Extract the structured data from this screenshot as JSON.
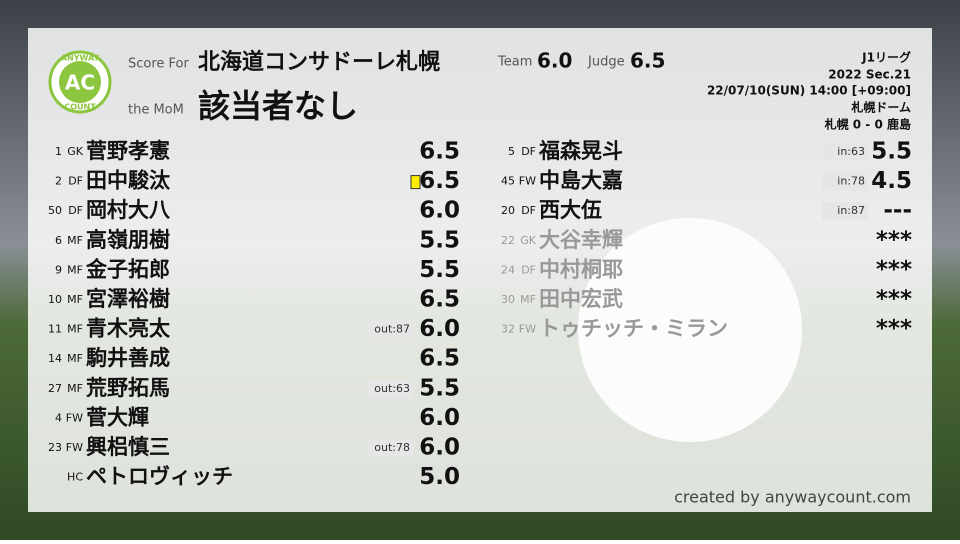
{
  "logo": {
    "top": "ANYWAY",
    "mark": "AC",
    "bottom": "COUNT"
  },
  "header": {
    "score_for_label": "Score For",
    "team": "北海道コンサドーレ札幌",
    "team_label": "Team",
    "team_score": "6.0",
    "judge_label": "Judge",
    "judge_score": "6.5",
    "mom_label": "the MoM",
    "mom": "該当者なし"
  },
  "match": {
    "league": "J1リーグ",
    "season": "2022 Sec.21",
    "datetime": "22/07/10(SUN) 14:00 [+09:00]",
    "venue": "札幌ドーム",
    "result": "札幌 0 - 0 鹿島"
  },
  "starters": [
    {
      "number": "1",
      "position": "GK",
      "name": "菅野孝憲",
      "score": "6.5"
    },
    {
      "number": "2",
      "position": "DF",
      "name": "田中駿汰",
      "score": "6.5",
      "card": "yellow"
    },
    {
      "number": "50",
      "position": "DF",
      "name": "岡村大八",
      "score": "6.0"
    },
    {
      "number": "6",
      "position": "MF",
      "name": "高嶺朋樹",
      "score": "5.5"
    },
    {
      "number": "9",
      "position": "MF",
      "name": "金子拓郎",
      "score": "5.5"
    },
    {
      "number": "10",
      "position": "MF",
      "name": "宮澤裕樹",
      "score": "6.5"
    },
    {
      "number": "11",
      "position": "MF",
      "name": "青木亮太",
      "score": "6.0",
      "note": "out:87"
    },
    {
      "number": "14",
      "position": "MF",
      "name": "駒井善成",
      "score": "6.5"
    },
    {
      "number": "27",
      "position": "MF",
      "name": "荒野拓馬",
      "score": "5.5",
      "note": "out:63"
    },
    {
      "number": "4",
      "position": "FW",
      "name": "菅大輝",
      "score": "6.0"
    },
    {
      "number": "23",
      "position": "FW",
      "name": "興梠慎三",
      "score": "6.0",
      "note": "out:78"
    },
    {
      "position": "HC",
      "name": "ペトロヴィッチ",
      "score": "5.0"
    }
  ],
  "subs": [
    {
      "number": "5",
      "position": "DF",
      "name": "福森晃斗",
      "score": "5.5",
      "note": "in:63"
    },
    {
      "number": "45",
      "position": "FW",
      "name": "中島大嘉",
      "score": "4.5",
      "note": "in:78"
    },
    {
      "number": "20",
      "position": "DF",
      "name": "西大伍",
      "score": "---",
      "note": "in:87"
    },
    {
      "number": "22",
      "position": "GK",
      "name": "大谷幸輝",
      "score": "***",
      "dimmed": true
    },
    {
      "number": "24",
      "position": "DF",
      "name": "中村桐耶",
      "score": "***",
      "dimmed": true
    },
    {
      "number": "30",
      "position": "MF",
      "name": "田中宏武",
      "score": "***",
      "dimmed": true
    },
    {
      "number": "32",
      "position": "FW",
      "name": "トゥチッチ・ミラン",
      "score": "***",
      "dimmed": true
    }
  ],
  "footer": {
    "credit": "created by anywaycount.com"
  }
}
